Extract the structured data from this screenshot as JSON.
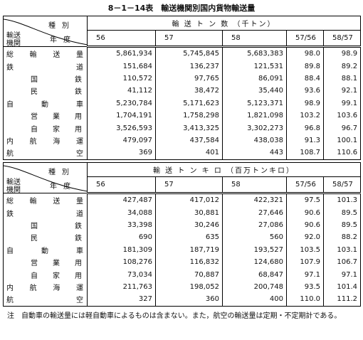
{
  "title": "8－1－14表　輸送機関別国内貨物輸送量",
  "tables": [
    {
      "corner": {
        "kind": "種別",
        "agency": "輸送機関",
        "year": "年度"
      },
      "group_header": "輸 送 ト ン 数 （千トン）",
      "columns": [
        "56",
        "57",
        "58",
        "57/56",
        "58/57"
      ],
      "rows": [
        [
          "総輸送量",
          "5,861,934",
          "5,745,845",
          "5,683,383",
          "98.0",
          "98.9"
        ],
        [
          "鉄道",
          "151,684",
          "136,237",
          "121,531",
          "89.8",
          "89.2"
        ],
        [
          "国鉄",
          "110,572",
          "97,765",
          "86,091",
          "88.4",
          "88.1"
        ],
        [
          "民鉄",
          "41,112",
          "38,472",
          "35,440",
          "93.6",
          "92.1"
        ],
        [
          "自動車",
          "5,230,784",
          "5,171,623",
          "5,123,371",
          "98.9",
          "99.1"
        ],
        [
          "営業用",
          "1,704,191",
          "1,758,298",
          "1,821,098",
          "103.2",
          "103.6"
        ],
        [
          "自家用",
          "3,526,593",
          "3,413,325",
          "3,302,273",
          "96.8",
          "96.7"
        ],
        [
          "内航海運",
          "479,097",
          "437,584",
          "438,038",
          "91.3",
          "100.1"
        ],
        [
          "航空",
          "369",
          "401",
          "443",
          "108.7",
          "110.6"
        ]
      ]
    },
    {
      "corner": {
        "kind": "種別",
        "agency": "輸送機関",
        "year": "年度"
      },
      "group_header": "輸 送 ト ン キ ロ （百万トンキロ）",
      "columns": [
        "56",
        "57",
        "58",
        "57/56",
        "58/57"
      ],
      "rows": [
        [
          "総輸送量",
          "427,487",
          "417,012",
          "422,321",
          "97.5",
          "101.3"
        ],
        [
          "鉄道",
          "34,088",
          "30,881",
          "27,646",
          "90.6",
          "89.5"
        ],
        [
          "国鉄",
          "33,398",
          "30,246",
          "27,086",
          "90.6",
          "89.5"
        ],
        [
          "民鉄",
          "690",
          "635",
          "560",
          "92.0",
          "88.2"
        ],
        [
          "自動車",
          "181,309",
          "187,719",
          "193,527",
          "103.5",
          "103.1"
        ],
        [
          "営業用",
          "108,276",
          "116,832",
          "124,680",
          "107.9",
          "106.7"
        ],
        [
          "自家用",
          "73,034",
          "70,887",
          "68,847",
          "97.1",
          "97.1"
        ],
        [
          "内航海運",
          "211,763",
          "198,052",
          "200,748",
          "93.5",
          "101.4"
        ],
        [
          "航空",
          "327",
          "360",
          "400",
          "110.0",
          "111.2"
        ]
      ]
    }
  ],
  "note": "注　自動車の輸送量には軽自動車によるものは含まない。また，航空の輸送量は定期・不定期計である。"
}
